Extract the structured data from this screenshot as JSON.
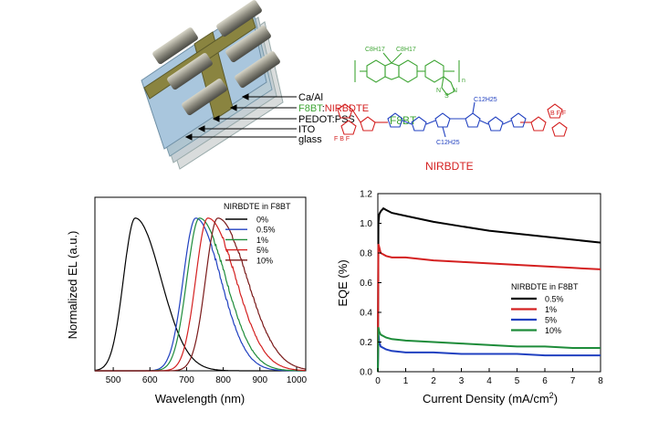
{
  "device": {
    "layers": [
      "Ca/Al",
      "F8BT",
      ":",
      "NIRBDTE",
      "PEDOT:PSS",
      "ITO",
      "glass"
    ]
  },
  "structures": {
    "f8bt_name": "F8BT",
    "nirbdte_name": "NIRBDTE",
    "c8h17_a": "C8H17",
    "c8h17_b": "C8H17",
    "n_label": "n",
    "n1": "N",
    "n2": "N",
    "s1": "S",
    "c12h25_top": "C12H25",
    "c12h25_bot": "C12H25",
    "bf_left": "F  B  F",
    "bf_right": "B  F  F",
    "colors": {
      "f8bt": "#3fa535",
      "nirbdte": "#d42020"
    }
  },
  "chart_data": [
    {
      "type": "line",
      "xlabel": "Wavelength (nm)",
      "ylabel": "Normalized EL (a.u.)",
      "xlim": [
        450,
        1025
      ],
      "xticks": [
        500,
        600,
        700,
        800,
        900,
        1000
      ],
      "yticks": [],
      "legend_title": "NIRBDTE in F8BT",
      "legend_position": "top-right",
      "series": [
        {
          "name": "0%",
          "color": "#000000",
          "peak": 560,
          "sigma_left": 32,
          "sigma_right": 70
        },
        {
          "name": "0.5%",
          "color": "#2040c0",
          "peak": 725,
          "sigma_left": 34,
          "sigma_right": 68
        },
        {
          "name": "1%",
          "color": "#1e8c3a",
          "peak": 735,
          "sigma_left": 34,
          "sigma_right": 72
        },
        {
          "name": "5%",
          "color": "#d42020",
          "peak": 758,
          "sigma_left": 33,
          "sigma_right": 76
        },
        {
          "name": "10%",
          "color": "#7a1a1a",
          "peak": 785,
          "sigma_left": 33,
          "sigma_right": 80
        }
      ]
    },
    {
      "type": "line",
      "xlabel": "Current Density (mA/cm",
      "xlabel_sup": "2",
      "xlabel_end": ")",
      "ylabel": "EQE (%)",
      "xlim": [
        0,
        8
      ],
      "ylim": [
        0.0,
        1.2
      ],
      "xticks": [
        0,
        1,
        2,
        3,
        4,
        5,
        6,
        7,
        8
      ],
      "yticks": [
        "0.0",
        "0.2",
        "0.4",
        "0.6",
        "0.8",
        "1.0",
        "1.2"
      ],
      "legend_title": "NIRBDTE in F8BT",
      "legend_position": "center-right",
      "series": [
        {
          "name": "0.5%",
          "color": "#000000",
          "x": [
            0.02,
            0.05,
            0.1,
            0.2,
            0.3,
            0.5,
            1,
            2,
            3,
            4,
            5,
            6,
            7,
            8
          ],
          "y": [
            1.0,
            1.06,
            1.08,
            1.1,
            1.09,
            1.07,
            1.05,
            1.01,
            0.98,
            0.95,
            0.93,
            0.91,
            0.89,
            0.87
          ]
        },
        {
          "name": "1%",
          "color": "#d42020",
          "x": [
            0.02,
            0.05,
            0.1,
            0.2,
            0.3,
            0.5,
            1,
            2,
            3,
            4,
            5,
            6,
            7,
            8
          ],
          "y": [
            0.86,
            0.84,
            0.8,
            0.79,
            0.78,
            0.77,
            0.77,
            0.75,
            0.74,
            0.73,
            0.72,
            0.71,
            0.7,
            0.69
          ]
        },
        {
          "name": "5%",
          "color": "#2040c0",
          "x": [
            0.02,
            0.05,
            0.1,
            0.2,
            0.3,
            0.5,
            1,
            2,
            3,
            4,
            5,
            6,
            7,
            8
          ],
          "y": [
            0.26,
            0.2,
            0.17,
            0.16,
            0.15,
            0.14,
            0.13,
            0.13,
            0.12,
            0.12,
            0.12,
            0.11,
            0.11,
            0.11
          ]
        },
        {
          "name": "10%",
          "color": "#1e8c3a",
          "x": [
            0.02,
            0.05,
            0.1,
            0.2,
            0.3,
            0.5,
            1,
            2,
            3,
            4,
            5,
            6,
            7,
            8
          ],
          "y": [
            0.3,
            0.27,
            0.25,
            0.24,
            0.23,
            0.22,
            0.21,
            0.2,
            0.19,
            0.18,
            0.17,
            0.17,
            0.16,
            0.16
          ]
        }
      ]
    }
  ]
}
